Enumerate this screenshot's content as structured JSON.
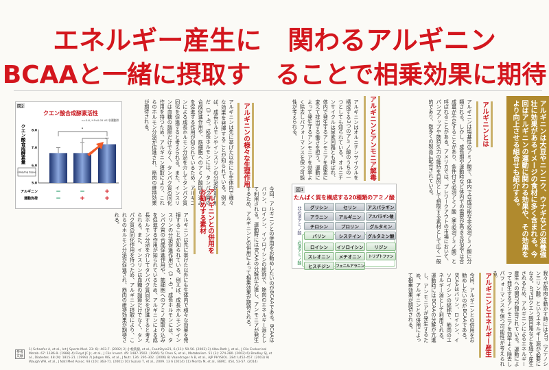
{
  "headline": {
    "line1": "エネルギー産生に　関わるアルギニン",
    "line2": "BCAAと一緒に摂取す　ることで相乗効果に期待"
  },
  "lead": "アルギニンは大豆やニンニク、ウナギなどの滋養強壮に効果があるイメージの食材に多く含まれる。今回はアルギニンの運動に関わる効果や、その効果をより向上させる組合せも紹介する。",
  "sections": {
    "what_is": {
      "heading": "アルギニンとは",
      "body": "アルギニンは塩基性のアミノ酸で、体内で合成可能な非必須アミノ酸に分類される。しかし、成長期や運動時など体内での需要が高まる状況では合成量が不足することがあり、条件付き必須アミノ酸（準必須アミノ酸）と呼ばれることがある。アメリカでは、プレワークアウトの市場において、パンプアップや筋持久力の維持を目的として摂取する素材として広く一般的であり、数多くの製品に配合されている。"
    },
    "ammonia": {
      "heading": "アルギニンとアンモニア解毒",
      "body": "アルギニンはオルニチンサイクルを構成する3つのアミノ酸のうちの一つとしても知られている。オルニチンサイクルは尿素回路とも呼ばれ、体内で発生するアンモニアを尿素に変えて排出する働きを担う。運動によって発生するアンモニアを効率よく除去しパフォーマンスを保つ可能性が考えられる。"
    },
    "physiology": {
      "heading": "アルギニンの様々な生理作用",
      "body": "アルギニンは先に挙げた以外にも生体内で様々な効果を発揮することが知られている。例えば、成長ホルモンやインスリンの分泌促進作用だ（3・4）。成長ホルモンには、タンパク質の合成促進作用や、筋細胞へのアミノ酸取り込みを促進する作用が知られているため、アルギニンによる成長ホルモン分泌を介してタンパク質同化を促進すると考えられる。また、インスリンは血糖の調節だけでなく、タンパク質の同化作用を持つため、アルギニン摂取により、これらのホルモン分泌が促進され、筋肉の維持効果が期待される。"
    },
    "recommended": {
      "heading": "アルギニンとの併用をお勧めする素材",
      "body": "今回、アルギニンとの併用をお勧めしたいのがBCAAである。BCAAはバリン、ロイシン、イソロイシンの総称で、筋肉のエネルギー源として利用される。運動時にはBCAAの分解が亢進し、アンモニアが発生するため、アルギニンとの併用によって相乗効果が期待される。"
    },
    "energy": {
      "heading": "アルギニンとエネルギー産生",
      "body": "我々が筋肉を動かす時にはATP（アデノシン三リン酸）というエネルギー源が必要になる。ATPはクエン酸回路などを経て産生されるため、アルギニンによるエネルギー産生への関与が報告されている。運動によって発生するアンモニアを効率よく除去しパフォーマンスを保つ可能性が考えられる。"
    }
  },
  "figure1": {
    "label": "図1",
    "title": "たんぱく質を構成する20種類のアミノ酸",
    "nonessential_label": "非必須アミノ酸",
    "essential_label": "必須アミノ酸",
    "nonessential": [
      "グリシン",
      "セリン",
      "アスパラギン",
      "アラニン",
      "アルギニン",
      "アスパラギン酸",
      "チロシン",
      "プロリン",
      "グルタミン",
      "システイン",
      "グルタミン酸"
    ],
    "essential": [
      "バリン",
      "ロイシン",
      "イソロイシン",
      "リジン",
      "スレオニン",
      "メチオニン",
      "トリプトファン",
      "ヒスチジン",
      "フェニルアラニン"
    ]
  },
  "chart_data": {
    "type": "bar",
    "label": "図2",
    "title": "クエン酸合成酵素活性",
    "annotation": "n=5-6, *:P<0.05 VS 非運動群",
    "ylabel": "クエン酸合成酵素量",
    "yunit": "nmol/mg tissue",
    "ylim": [
      5.0,
      8.0
    ],
    "yticks": [
      "5.0",
      "6.0",
      "7.0",
      "8.0"
    ],
    "values": [
      6.7,
      6.7,
      7.2
    ],
    "errors": [
      0.3,
      0.6,
      0.35
    ],
    "significance": "*",
    "row_labels": [
      "アルギニン",
      "運動負荷"
    ],
    "conditions": [
      [
        "−",
        "−"
      ],
      [
        "−",
        "+"
      ],
      [
        "+",
        "+"
      ]
    ],
    "colors": {
      "bar": "#2f4a8a",
      "plus": "#d3161d",
      "minus": "#2a9a6a"
    }
  },
  "references": {
    "tag": "参考文献",
    "text": "1) Schaefer A, et al., Int J Sports Med. 23: 6): 403-7. (2002) 2) 小松英樹, et al., FoodStyle21, 6 (11): 50-56. (2002) 3) Alba-Roth J, et al., J Clin Endocrinol Metab. 67: 1186-9. (1988) 4) Floyd JC Jr, et al., J Clin Invest. 45: 1487-1502. (1966) 5) Chen S, et al., Metabolism. 51 (3): 274-280. (2002) 6) Bradley SJ, et al., Diabetes. 48 (9): 1815-21. (1999) 7) Jobgen WS, et al., J Nutr. 136: 295-302. (2006) 8) Vaandrager A B, et al., AJP PHYSIOL. 284: L452-457. (2003) 9) Waugh WH, et al., J Natl Med Assoc. 93 (10): 363-71. (2001) 10) Suzuki T, et al., 2009. 13 6 (2014) 11) Morita M, et al., BBRC. 454, 53-57. (2014)"
  }
}
